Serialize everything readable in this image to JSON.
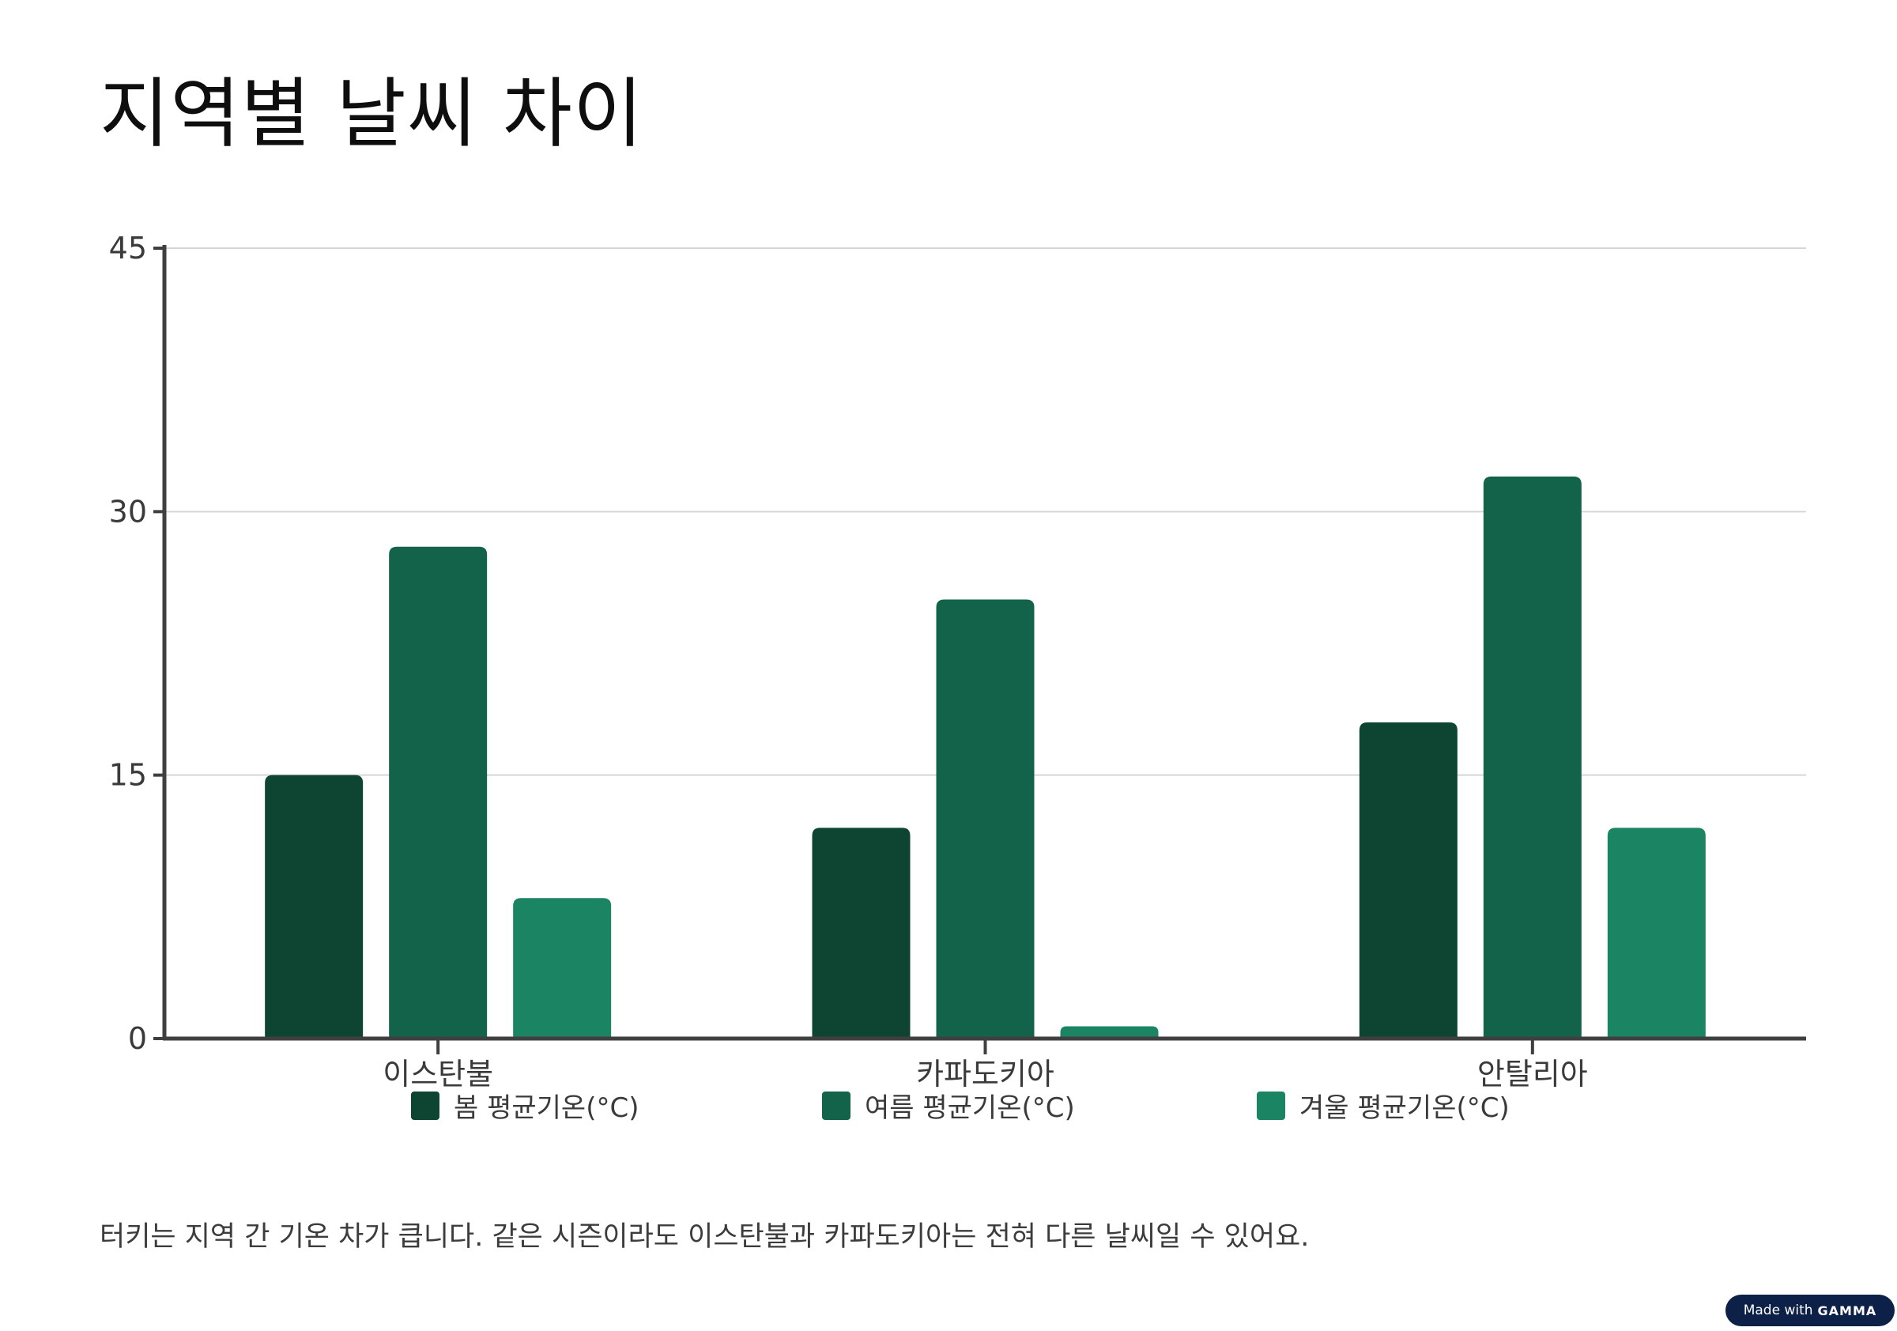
{
  "title": "지역별 날씨 차이",
  "caption": "터키는 지역 간 기온 차가 큽니다. 같은 시즌이라도 이스탄불과 카파도키아는 전혀 다른 날씨일 수 있어요.",
  "badge": {
    "prefix": "Made with",
    "brand": "GAMMA"
  },
  "chart_data": {
    "type": "bar",
    "title": "",
    "xlabel": "",
    "ylabel": "",
    "categories": [
      "이스탄불",
      "카파도키아",
      "안탈리아"
    ],
    "series": [
      {
        "name": "봄 평균기온(°C)",
        "values": [
          15,
          12,
          18
        ],
        "color": "#0d4532"
      },
      {
        "name": "여름 평균기온(°C)",
        "values": [
          28,
          25,
          32
        ],
        "color": "#12634a"
      },
      {
        "name": "겨울 평균기온(°C)",
        "values": [
          8,
          0.7,
          12
        ],
        "color": "#1b8462"
      }
    ],
    "ylim": [
      0,
      45
    ],
    "yticks": [
      0,
      15,
      30,
      45
    ],
    "grid": true,
    "legend_position": "bottom"
  }
}
